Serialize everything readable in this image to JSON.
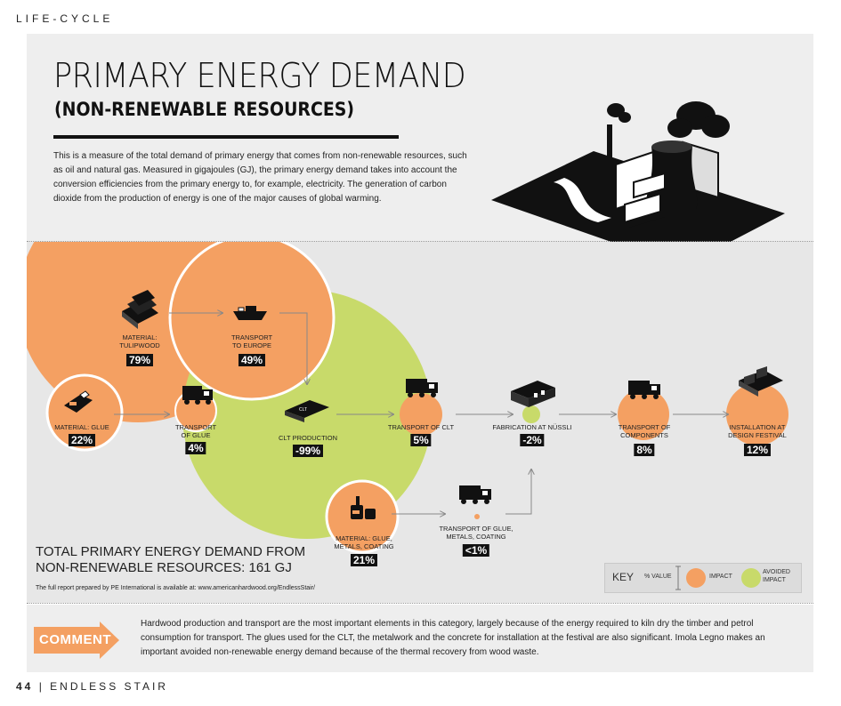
{
  "page": {
    "section_label": "LIFE-CYCLE",
    "title": "PRIMARY ENERGY DEMAND",
    "subtitle": "(NON-RENEWABLE RESOURCES)",
    "intro": "This is a measure of the total demand of primary energy that comes from non-renewable resources, such as oil and natural gas. Measured in gigajoules (GJ), the primary energy demand takes into account the conversion efficiencies from the primary energy to, for example, electricity. The generation of carbon dioxide from the production of energy is one of the major causes of global warming.",
    "footer_page": "44",
    "footer_sep": "|",
    "footer_title": "ENDLESS STAIR"
  },
  "diagram": {
    "nodes": [
      {
        "id": "tulipwood",
        "label": [
          "MATERIAL:",
          "TULIPWOOD"
        ],
        "value": "79%",
        "type": "impact",
        "icon": "lumber-stack-icon"
      },
      {
        "id": "transport-europe",
        "label": [
          "TRANSPORT",
          "TO EUROPE"
        ],
        "value": "49%",
        "type": "impact",
        "icon": "ship-icon"
      },
      {
        "id": "glue",
        "label": [
          "MATERIAL: GLUE"
        ],
        "value": "22%",
        "type": "impact",
        "icon": "glue-bottle-icon"
      },
      {
        "id": "transport-glue",
        "label": [
          "TRANSPORT",
          "OF GLUE"
        ],
        "value": "4%",
        "type": "impact",
        "icon": "truck-icon"
      },
      {
        "id": "clt-production",
        "label": [
          "CLT PRODUCTION"
        ],
        "value": "-99%",
        "type": "avoided",
        "icon": "clt-panel-icon"
      },
      {
        "id": "transport-clt",
        "label": [
          "TRANSPORT OF CLT"
        ],
        "value": "5%",
        "type": "impact",
        "icon": "truck-icon"
      },
      {
        "id": "fabrication",
        "label": [
          "FABRICATION AT NÜSSLI"
        ],
        "value": "-2%",
        "type": "avoided",
        "icon": "factory-building-icon"
      },
      {
        "id": "transport-components",
        "label": [
          "TRANSPORT OF",
          "COMPONENTS"
        ],
        "value": "8%",
        "type": "impact",
        "icon": "truck-icon"
      },
      {
        "id": "installation",
        "label": [
          "INSTALLATION AT",
          "DESIGN FESTIVAL"
        ],
        "value": "12%",
        "type": "impact",
        "icon": "stair-installation-icon"
      },
      {
        "id": "glue-metals",
        "label": [
          "MATERIAL: GLUE,",
          "METALS, COATING"
        ],
        "value": "21%",
        "type": "impact",
        "icon": "materials-cans-icon"
      },
      {
        "id": "transport-glue-metals",
        "label": [
          "TRANSPORT OF GLUE,",
          "METALS, COATING"
        ],
        "value": "<1%",
        "type": "impact",
        "icon": "truck-icon"
      }
    ]
  },
  "total": {
    "line1": "TOTAL PRIMARY ENERGY DEMAND FROM",
    "line2": "NON-RENEWABLE RESOURCES:",
    "value": "161 GJ"
  },
  "full_report": "The full report prepared by PE International is available at: www.americanhardwood.org/EndlessStair/",
  "key": {
    "title": "KEY",
    "value_label": "% VALUE",
    "impact": "IMPACT",
    "avoided_line1": "AVOIDED",
    "avoided_line2": "IMPACT"
  },
  "comment": {
    "label": "COMMENT",
    "text": "Hardwood production and transport are the most important elements in this category, largely because of the energy required to kiln dry the timber and petrol consumption for transport. The glues used for the CLT, the metalwork and the concrete for installation at the festival are also significant. Imola Legno makes an important avoided non-renewable energy demand because of the thermal recovery from wood waste."
  },
  "colors": {
    "impact": "#f4a062",
    "avoided": "#c8da6a",
    "panel": "#e7e7e7",
    "dark": "#111111"
  }
}
